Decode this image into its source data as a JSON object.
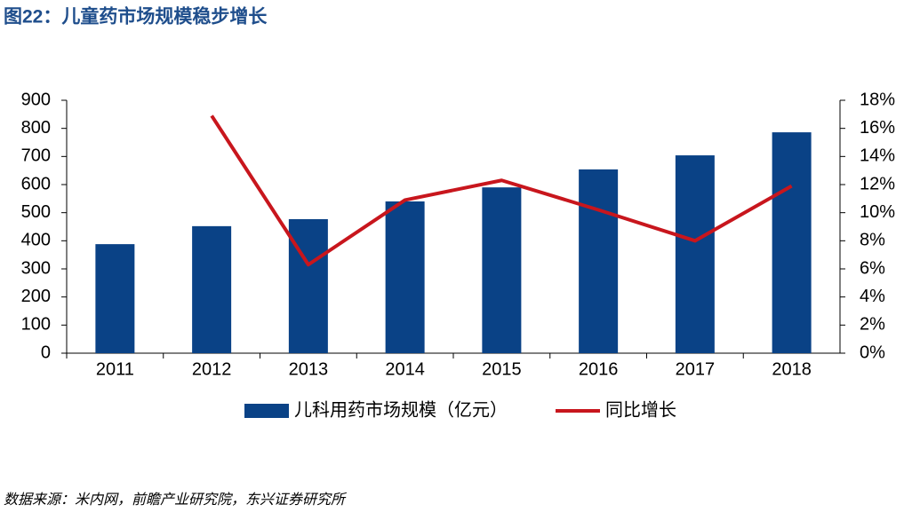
{
  "chart_data": {
    "type": "bar",
    "title": "图22：儿童药市场规模稳步增长",
    "source": "数据来源：米内网，前瞻产业研究院，东兴证券研究所",
    "categories": [
      "2011",
      "2012",
      "2013",
      "2014",
      "2015",
      "2016",
      "2017",
      "2018"
    ],
    "series": [
      {
        "name": "儿科用药市场规模（亿元）",
        "type": "bar",
        "color": "#0a4286",
        "values": [
          388,
          452,
          477,
          540,
          590,
          654,
          704,
          786
        ]
      },
      {
        "name": "同比增长",
        "type": "line",
        "axis": "y2",
        "color": "#c8161d",
        "values": [
          null,
          16.9,
          6.3,
          10.9,
          12.3,
          10.2,
          8.0,
          11.9
        ]
      }
    ],
    "ylim": [
      0,
      900
    ],
    "yticks": [
      0,
      100,
      200,
      300,
      400,
      500,
      600,
      700,
      800,
      900
    ],
    "y2lim": [
      0,
      18
    ],
    "y2ticks": [
      {
        "value": 0,
        "label": "0%"
      },
      {
        "value": 2,
        "label": "2%"
      },
      {
        "value": 4,
        "label": "4%"
      },
      {
        "value": 6,
        "label": "6%"
      },
      {
        "value": 8,
        "label": "8%"
      },
      {
        "value": 10,
        "label": "10%"
      },
      {
        "value": 12,
        "label": "12%"
      },
      {
        "value": 14,
        "label": "14%"
      },
      {
        "value": 16,
        "label": "16%"
      },
      {
        "value": 18,
        "label": "18%"
      }
    ],
    "grid": false
  }
}
